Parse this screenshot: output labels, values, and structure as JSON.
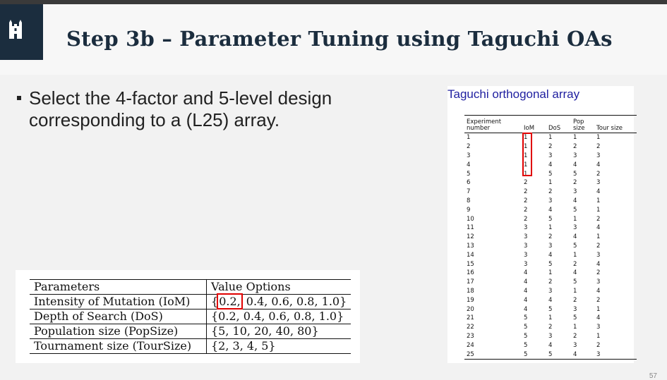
{
  "title": "Step 3b – Parameter Tuning using Taguchi OAs",
  "bullet": "Select the 4-factor and 5-level design corresponding to a (L25) array.",
  "params_table": {
    "headers": [
      "Parameters",
      "Value Options"
    ],
    "rows": [
      {
        "name": "Intensity of Mutation (IoM)",
        "value_lead": "{",
        "value_highlight": "0.2,",
        "value_rest": " 0.4, 0.6, 0.8, 1.0}"
      },
      {
        "name": "Depth of Search (DoS)",
        "value": "{0.2, 0.4, 0.6, 0.8, 1.0}"
      },
      {
        "name": "Population size (PopSize)",
        "value": "{5, 10, 20, 40, 80}"
      },
      {
        "name": "Tournament size (TourSize)",
        "value": "{2, 3, 4, 5}"
      }
    ]
  },
  "taguchi": {
    "title": "Taguchi orthogonal array",
    "headers": [
      "Experiment number",
      "IoM",
      "DoS",
      "Pop size",
      "Tour size"
    ],
    "rows": [
      [
        "1",
        "1",
        "1",
        "1",
        "1"
      ],
      [
        "2",
        "1",
        "2",
        "2",
        "2"
      ],
      [
        "3",
        "1",
        "3",
        "3",
        "3"
      ],
      [
        "4",
        "1",
        "4",
        "4",
        "4"
      ],
      [
        "5",
        "1",
        "5",
        "5",
        "2"
      ],
      [
        "6",
        "2",
        "1",
        "2",
        "3"
      ],
      [
        "7",
        "2",
        "2",
        "3",
        "4"
      ],
      [
        "8",
        "2",
        "3",
        "4",
        "1"
      ],
      [
        "9",
        "2",
        "4",
        "5",
        "1"
      ],
      [
        "10",
        "2",
        "5",
        "1",
        "2"
      ],
      [
        "11",
        "3",
        "1",
        "3",
        "4"
      ],
      [
        "12",
        "3",
        "2",
        "4",
        "1"
      ],
      [
        "13",
        "3",
        "3",
        "5",
        "2"
      ],
      [
        "14",
        "3",
        "4",
        "1",
        "3"
      ],
      [
        "15",
        "3",
        "5",
        "2",
        "4"
      ],
      [
        "16",
        "4",
        "1",
        "4",
        "2"
      ],
      [
        "17",
        "4",
        "2",
        "5",
        "3"
      ],
      [
        "18",
        "4",
        "3",
        "1",
        "4"
      ],
      [
        "19",
        "4",
        "4",
        "2",
        "2"
      ],
      [
        "20",
        "4",
        "5",
        "3",
        "1"
      ],
      [
        "21",
        "5",
        "1",
        "5",
        "4"
      ],
      [
        "22",
        "5",
        "2",
        "1",
        "3"
      ],
      [
        "23",
        "5",
        "3",
        "2",
        "1"
      ],
      [
        "24",
        "5",
        "4",
        "3",
        "2"
      ],
      [
        "25",
        "5",
        "5",
        "4",
        "3"
      ]
    ]
  },
  "page_number": "57",
  "colors": {
    "brand": "#1b2d3e",
    "highlight": "#e00000",
    "array_title": "#1f1fa0"
  }
}
